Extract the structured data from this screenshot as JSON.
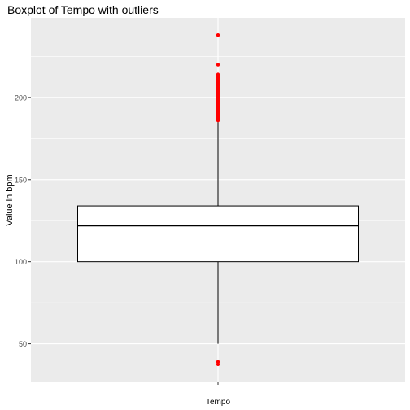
{
  "chart_data": {
    "type": "boxplot",
    "title": "Boxplot of Tempo with outliers",
    "xlabel": "",
    "ylabel": "Value in bpm",
    "categories": [
      "Tempo"
    ],
    "ylim": [
      26.5,
      248.5
    ],
    "yticks": [
      50,
      100,
      150,
      200
    ],
    "ytick_labels": [
      "50",
      "100",
      "150",
      "200"
    ],
    "grid": true,
    "background_color": "#EBEBEB",
    "grid_color": "#FFFFFF",
    "outlier_color": "#FF0000",
    "box_fill": "#FFFFFF",
    "box_stroke": "#000000",
    "boxes": [
      {
        "category": "Tempo",
        "lower_whisker": 50,
        "q1": 100,
        "median": 122,
        "q3": 134,
        "upper_whisker": 185,
        "outliers": [
          186,
          186.5,
          187,
          187.5,
          188,
          188.5,
          189,
          189.5,
          190,
          190.5,
          191,
          191.5,
          192,
          192.5,
          193,
          193.5,
          194,
          194.5,
          195,
          195.5,
          196,
          196.5,
          197,
          197.5,
          198,
          198.5,
          199,
          199.5,
          200,
          200.5,
          201,
          201.5,
          202,
          202.5,
          203,
          203.5,
          204,
          204.5,
          205,
          205.5,
          206,
          207,
          208,
          209,
          210,
          211,
          212,
          213,
          214,
          220,
          238,
          37.5,
          39
        ]
      }
    ]
  }
}
